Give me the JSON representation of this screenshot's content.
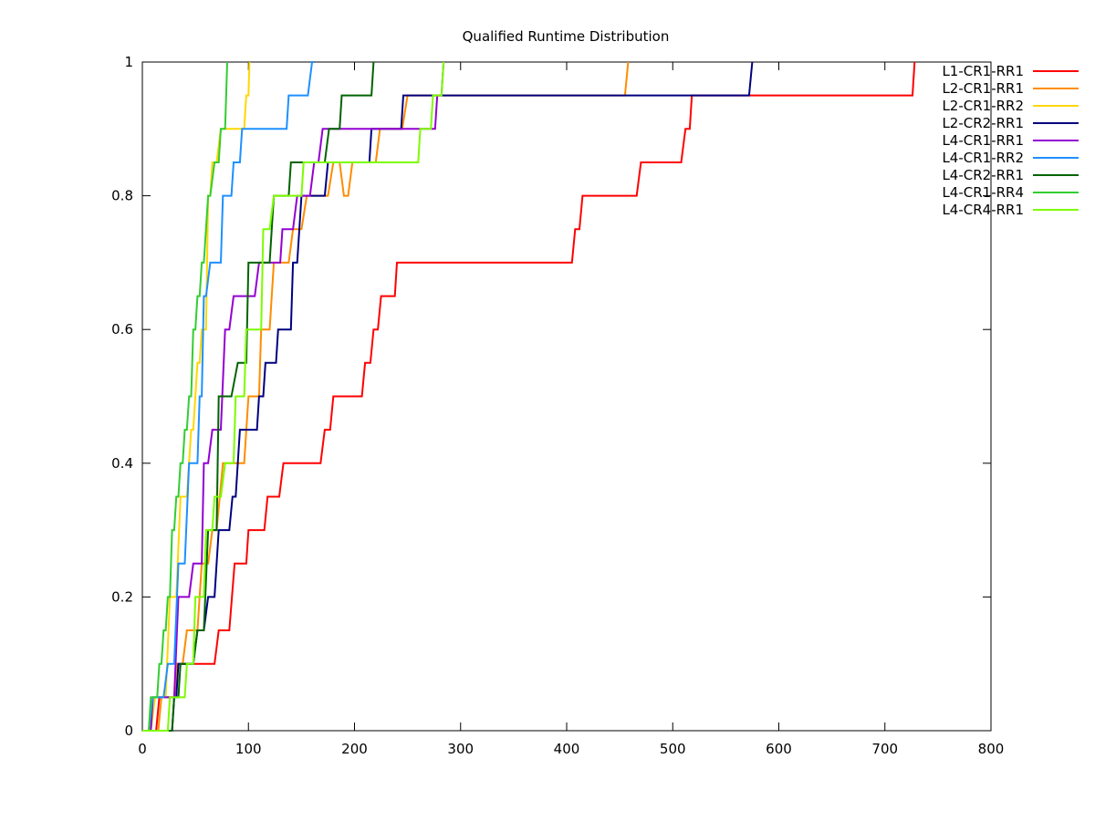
{
  "chart_data": {
    "type": "line",
    "title": "Qualified Runtime Distribution",
    "xlabel": "",
    "ylabel": "",
    "xlim": [
      0,
      800
    ],
    "ylim": [
      0,
      1
    ],
    "x_ticks": [
      "0",
      "100",
      "200",
      "300",
      "400",
      "500",
      "600",
      "700",
      "800"
    ],
    "y_ticks": [
      "0",
      "0.2",
      "0.4",
      "0.6",
      "0.8",
      "1"
    ],
    "grid": false,
    "legend_position": "top-right",
    "series": [
      {
        "name": "L1-CR1-RR1",
        "color": "#ff0000",
        "x": [
          0,
          13,
          16,
          30,
          33,
          68,
          72,
          82,
          87,
          98,
          100,
          115,
          118,
          129,
          133,
          168,
          172,
          177,
          180,
          207,
          210,
          215,
          218,
          222,
          225,
          238,
          240,
          405,
          408,
          412,
          415,
          466,
          470,
          508,
          512,
          516,
          518,
          726,
          728
        ],
        "y": [
          0,
          0,
          0.05,
          0.05,
          0.1,
          0.1,
          0.15,
          0.15,
          0.25,
          0.25,
          0.3,
          0.3,
          0.35,
          0.35,
          0.4,
          0.4,
          0.45,
          0.45,
          0.5,
          0.5,
          0.55,
          0.55,
          0.6,
          0.6,
          0.65,
          0.65,
          0.7,
          0.7,
          0.75,
          0.75,
          0.8,
          0.8,
          0.85,
          0.85,
          0.9,
          0.9,
          0.95,
          0.95,
          1
        ]
      },
      {
        "name": "L2-CR1-RR1",
        "color": "#ff8c00",
        "x": [
          0,
          15,
          18,
          30,
          33,
          38,
          42,
          52,
          56,
          62,
          66,
          70,
          76,
          96,
          100,
          110,
          112,
          120,
          124,
          138,
          142,
          150,
          155,
          175,
          180,
          186,
          190,
          194,
          198,
          220,
          224,
          245,
          250,
          252,
          255,
          455,
          458
        ],
        "y": [
          0,
          0,
          0.05,
          0.05,
          0.1,
          0.1,
          0.15,
          0.15,
          0.25,
          0.25,
          0.3,
          0.3,
          0.4,
          0.4,
          0.5,
          0.5,
          0.6,
          0.6,
          0.7,
          0.7,
          0.75,
          0.75,
          0.8,
          0.8,
          0.85,
          0.85,
          0.8,
          0.8,
          0.85,
          0.85,
          0.9,
          0.9,
          0.95,
          0.95,
          0.95,
          0.95,
          1
        ]
      },
      {
        "name": "L2-CR1-RR2",
        "color": "#ffd700",
        "x": [
          0,
          8,
          12,
          22,
          26,
          32,
          36,
          42,
          46,
          48,
          52,
          54,
          56,
          60,
          62,
          64,
          66,
          70,
          74,
          90,
          94,
          96,
          98,
          100,
          101
        ],
        "y": [
          0,
          0,
          0.05,
          0.05,
          0.2,
          0.2,
          0.35,
          0.35,
          0.45,
          0.45,
          0.55,
          0.55,
          0.6,
          0.6,
          0.8,
          0.8,
          0.85,
          0.85,
          0.9,
          0.9,
          0.9,
          0.9,
          0.95,
          0.95,
          1
        ]
      },
      {
        "name": "L2-CR2-RR1",
        "color": "#000080",
        "x": [
          0,
          28,
          30,
          32,
          34,
          48,
          52,
          58,
          62,
          68,
          72,
          82,
          85,
          88,
          92,
          108,
          110,
          114,
          116,
          126,
          128,
          140,
          142,
          146,
          150,
          172,
          175,
          214,
          216,
          244,
          246,
          572,
          575
        ],
        "y": [
          0,
          0,
          0.05,
          0.05,
          0.1,
          0.1,
          0.15,
          0.15,
          0.2,
          0.2,
          0.3,
          0.3,
          0.35,
          0.35,
          0.45,
          0.45,
          0.5,
          0.5,
          0.55,
          0.55,
          0.6,
          0.6,
          0.7,
          0.7,
          0.8,
          0.8,
          0.85,
          0.85,
          0.9,
          0.9,
          0.95,
          0.95,
          1
        ]
      },
      {
        "name": "L4-CR1-RR1",
        "color": "#9400d3",
        "x": [
          0,
          8,
          10,
          30,
          34,
          44,
          48,
          56,
          58,
          62,
          66,
          74,
          78,
          82,
          86,
          106,
          110,
          130,
          132,
          142,
          146,
          158,
          162,
          166,
          170,
          178,
          182,
          276,
          278,
          282,
          284
        ],
        "y": [
          0,
          0,
          0.05,
          0.05,
          0.2,
          0.2,
          0.25,
          0.25,
          0.4,
          0.4,
          0.45,
          0.45,
          0.6,
          0.6,
          0.65,
          0.65,
          0.7,
          0.7,
          0.75,
          0.75,
          0.8,
          0.8,
          0.85,
          0.85,
          0.9,
          0.9,
          0.9,
          0.9,
          0.95,
          0.95,
          1
        ]
      },
      {
        "name": "L4-CR1-RR2",
        "color": "#1e90ff",
        "x": [
          0,
          6,
          10,
          20,
          24,
          30,
          34,
          40,
          44,
          52,
          54,
          56,
          58,
          60,
          64,
          74,
          76,
          84,
          86,
          92,
          94,
          100,
          136,
          138,
          156,
          160,
          162
        ],
        "y": [
          0,
          0,
          0.05,
          0.05,
          0.1,
          0.1,
          0.25,
          0.25,
          0.4,
          0.4,
          0.5,
          0.5,
          0.65,
          0.65,
          0.7,
          0.7,
          0.8,
          0.8,
          0.85,
          0.85,
          0.9,
          0.9,
          0.9,
          0.95,
          0.95,
          1,
          1
        ]
      },
      {
        "name": "L4-CR2-RR1",
        "color": "#006400",
        "x": [
          0,
          28,
          30,
          34,
          36,
          48,
          52,
          58,
          62,
          70,
          72,
          84,
          90,
          98,
          100,
          106,
          110,
          120,
          124,
          138,
          140,
          150,
          152,
          172,
          176,
          186,
          188,
          216,
          218
        ],
        "y": [
          0,
          0,
          0.05,
          0.05,
          0.1,
          0.1,
          0.15,
          0.15,
          0.3,
          0.3,
          0.5,
          0.5,
          0.55,
          0.55,
          0.7,
          0.7,
          0.7,
          0.7,
          0.8,
          0.8,
          0.85,
          0.85,
          0.85,
          0.85,
          0.9,
          0.9,
          0.95,
          0.95,
          1
        ]
      },
      {
        "name": "L4-CR1-RR4",
        "color": "#32cd32",
        "x": [
          0,
          6,
          8,
          14,
          16,
          18,
          20,
          22,
          24,
          26,
          28,
          30,
          32,
          34,
          36,
          38,
          40,
          42,
          44,
          46,
          48,
          50,
          52,
          54,
          56,
          58,
          62,
          64,
          68,
          72,
          74,
          78,
          80
        ],
        "y": [
          0,
          0,
          0.05,
          0.05,
          0.1,
          0.1,
          0.15,
          0.15,
          0.2,
          0.2,
          0.3,
          0.3,
          0.35,
          0.35,
          0.4,
          0.4,
          0.45,
          0.45,
          0.5,
          0.5,
          0.6,
          0.6,
          0.65,
          0.65,
          0.7,
          0.7,
          0.8,
          0.8,
          0.85,
          0.85,
          0.9,
          0.9,
          1
        ]
      },
      {
        "name": "L4-CR4-RR1",
        "color": "#7cfc00",
        "x": [
          0,
          24,
          26,
          40,
          42,
          48,
          50,
          58,
          60,
          66,
          68,
          74,
          78,
          86,
          88,
          96,
          98,
          112,
          114,
          120,
          124,
          128,
          130,
          150,
          152,
          260,
          262,
          272,
          274,
          282,
          284
        ],
        "y": [
          0,
          0,
          0.05,
          0.05,
          0.1,
          0.1,
          0.2,
          0.2,
          0.3,
          0.3,
          0.35,
          0.35,
          0.4,
          0.4,
          0.5,
          0.5,
          0.6,
          0.6,
          0.75,
          0.75,
          0.8,
          0.8,
          0.8,
          0.8,
          0.85,
          0.85,
          0.9,
          0.9,
          0.95,
          0.95,
          1
        ]
      }
    ]
  }
}
